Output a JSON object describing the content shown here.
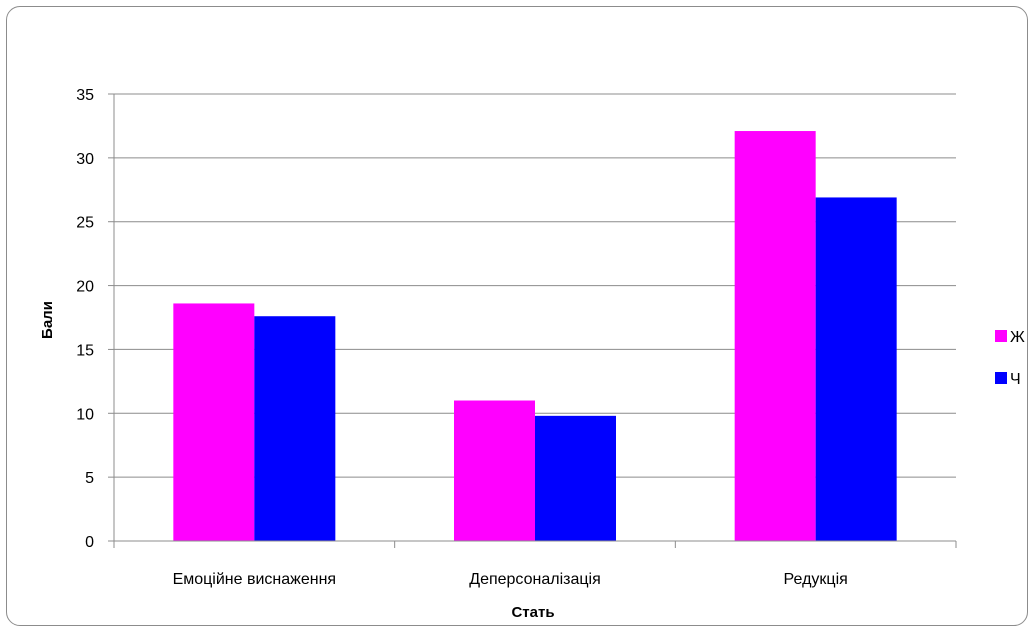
{
  "chart_data": {
    "type": "bar",
    "categories": [
      "Емоційне виснаження",
      "Деперсоналізація",
      "Редукція"
    ],
    "series": [
      {
        "name": "Ж",
        "values": [
          18.6,
          11.0,
          32.1
        ],
        "color": "#ff00ff"
      },
      {
        "name": "Ч",
        "values": [
          17.6,
          9.8,
          26.9
        ],
        "color": "#0000ff"
      }
    ],
    "title": "",
    "xlabel": "Стать",
    "ylabel": "Бали",
    "ylim": [
      0,
      35
    ],
    "yticks": [
      "0",
      "5",
      "10",
      "15",
      "20",
      "25",
      "30",
      "35"
    ],
    "grid": true,
    "legend_position": "right"
  }
}
